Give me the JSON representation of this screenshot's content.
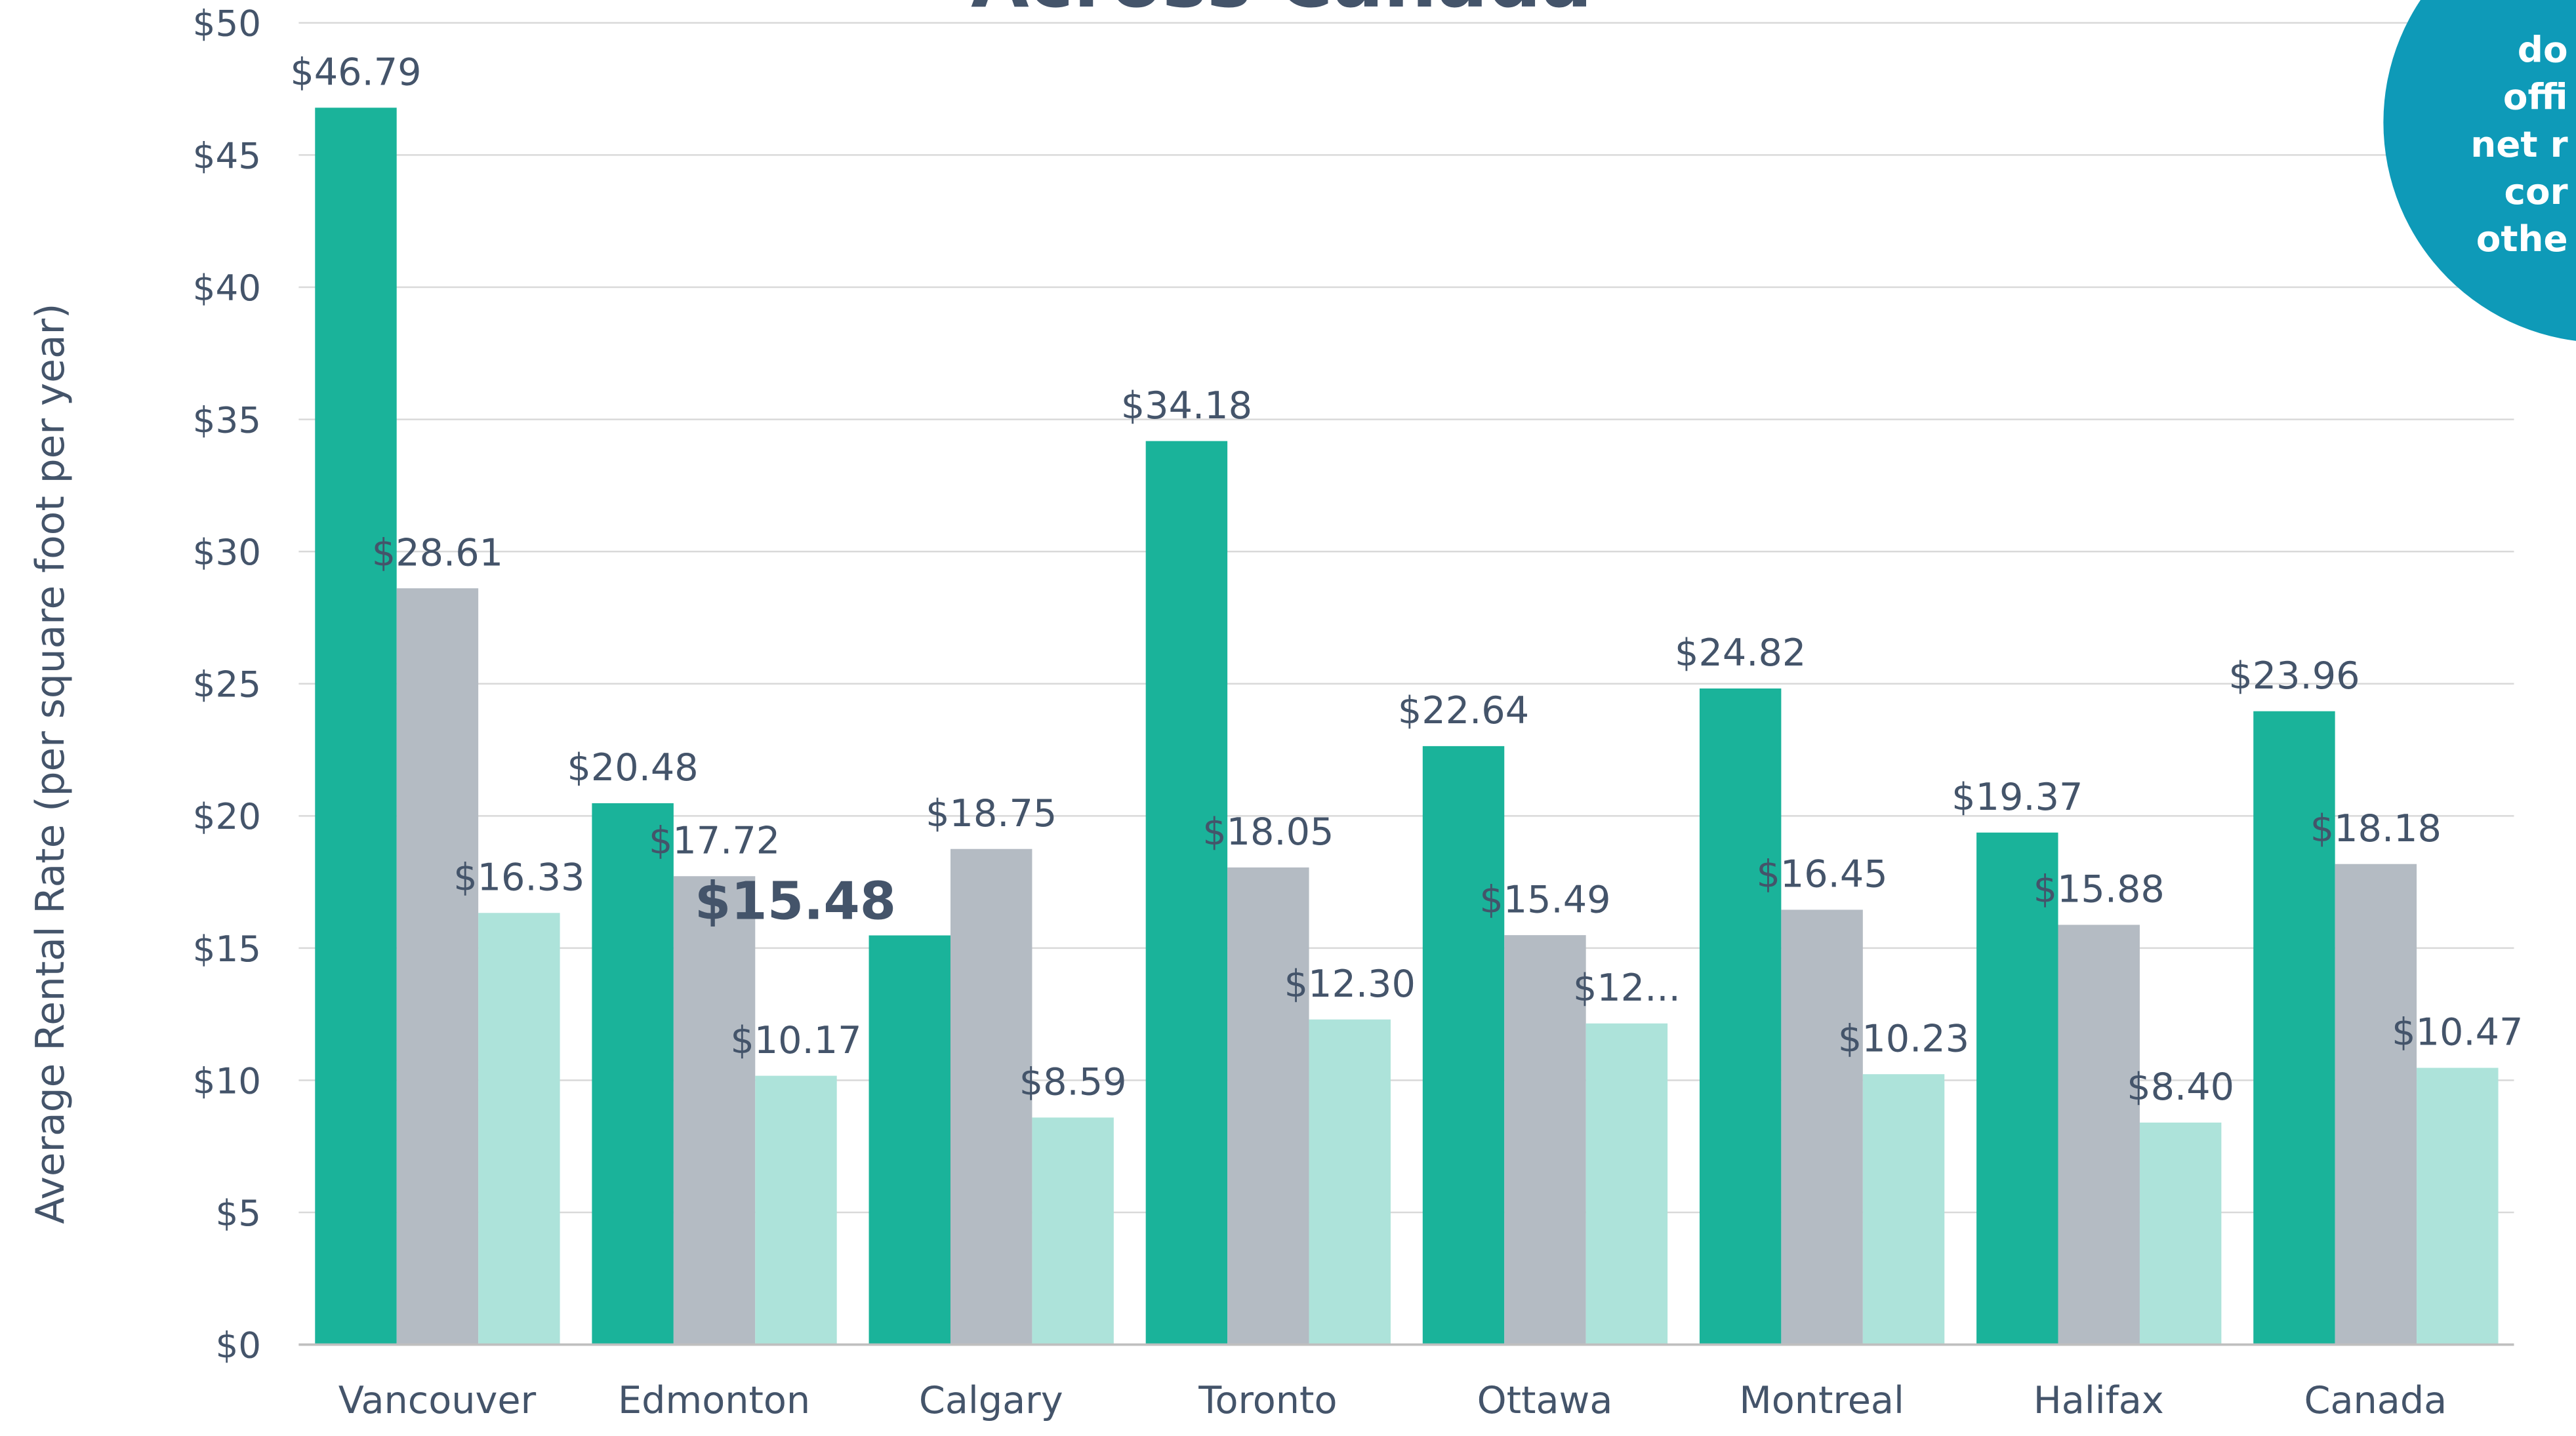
{
  "chart_data": {
    "type": "bar",
    "title": "Across Canada",
    "y_axis_label": "Average Rental Rate (per square foot per year)",
    "categories": [
      "Vancouver",
      "Edmonton",
      "Calgary",
      "Toronto",
      "Ottawa",
      "Montreal",
      "Halifax",
      "Canada"
    ],
    "series": [
      {
        "color": "#1ab39a",
        "values": [
          46.79,
          20.48,
          15.48,
          34.18,
          22.64,
          24.82,
          19.37,
          23.96
        ],
        "value_labels": [
          "$46.79",
          "$20.48",
          "$15.48",
          "$34.18",
          "$22.64",
          "$24.82",
          "$19.37",
          "$23.96"
        ]
      },
      {
        "color": "#b4bbc3",
        "values": [
          28.61,
          17.72,
          18.75,
          18.05,
          15.49,
          16.45,
          15.88,
          18.18
        ],
        "value_labels": [
          "$28.61",
          "$17.72",
          "$18.75",
          "$18.05",
          "$15.49",
          "$16.45",
          "$15.88",
          "$18.18"
        ]
      },
      {
        "color": "#ade3da",
        "values": [
          16.33,
          10.17,
          8.59,
          12.3,
          12.15,
          10.23,
          8.4,
          10.47
        ],
        "value_labels": [
          "$16.33",
          "$10.17",
          "$8.59",
          "$12.30",
          "$12...",
          "$10.23",
          "$8.40",
          "$10.47"
        ]
      }
    ],
    "highlighted_label": {
      "series": 0,
      "index": 2
    },
    "ylim": [
      0,
      50
    ],
    "yticks": [
      {
        "value": 0,
        "label": "$0"
      },
      {
        "value": 5,
        "label": "$5"
      },
      {
        "value": 10,
        "label": "$10"
      },
      {
        "value": 15,
        "label": "$15"
      },
      {
        "value": 20,
        "label": "$20"
      },
      {
        "value": 25,
        "label": "$25"
      },
      {
        "value": 30,
        "label": "$30"
      },
      {
        "value": 35,
        "label": "$35"
      },
      {
        "value": 40,
        "label": "$40"
      },
      {
        "value": 45,
        "label": "$45"
      },
      {
        "value": 50,
        "label": "$50"
      }
    ],
    "grid": true,
    "callout": {
      "lines": [
        "do",
        "offi",
        "net r",
        "cor",
        "othe"
      ],
      "color": "#0e9ab8"
    }
  }
}
